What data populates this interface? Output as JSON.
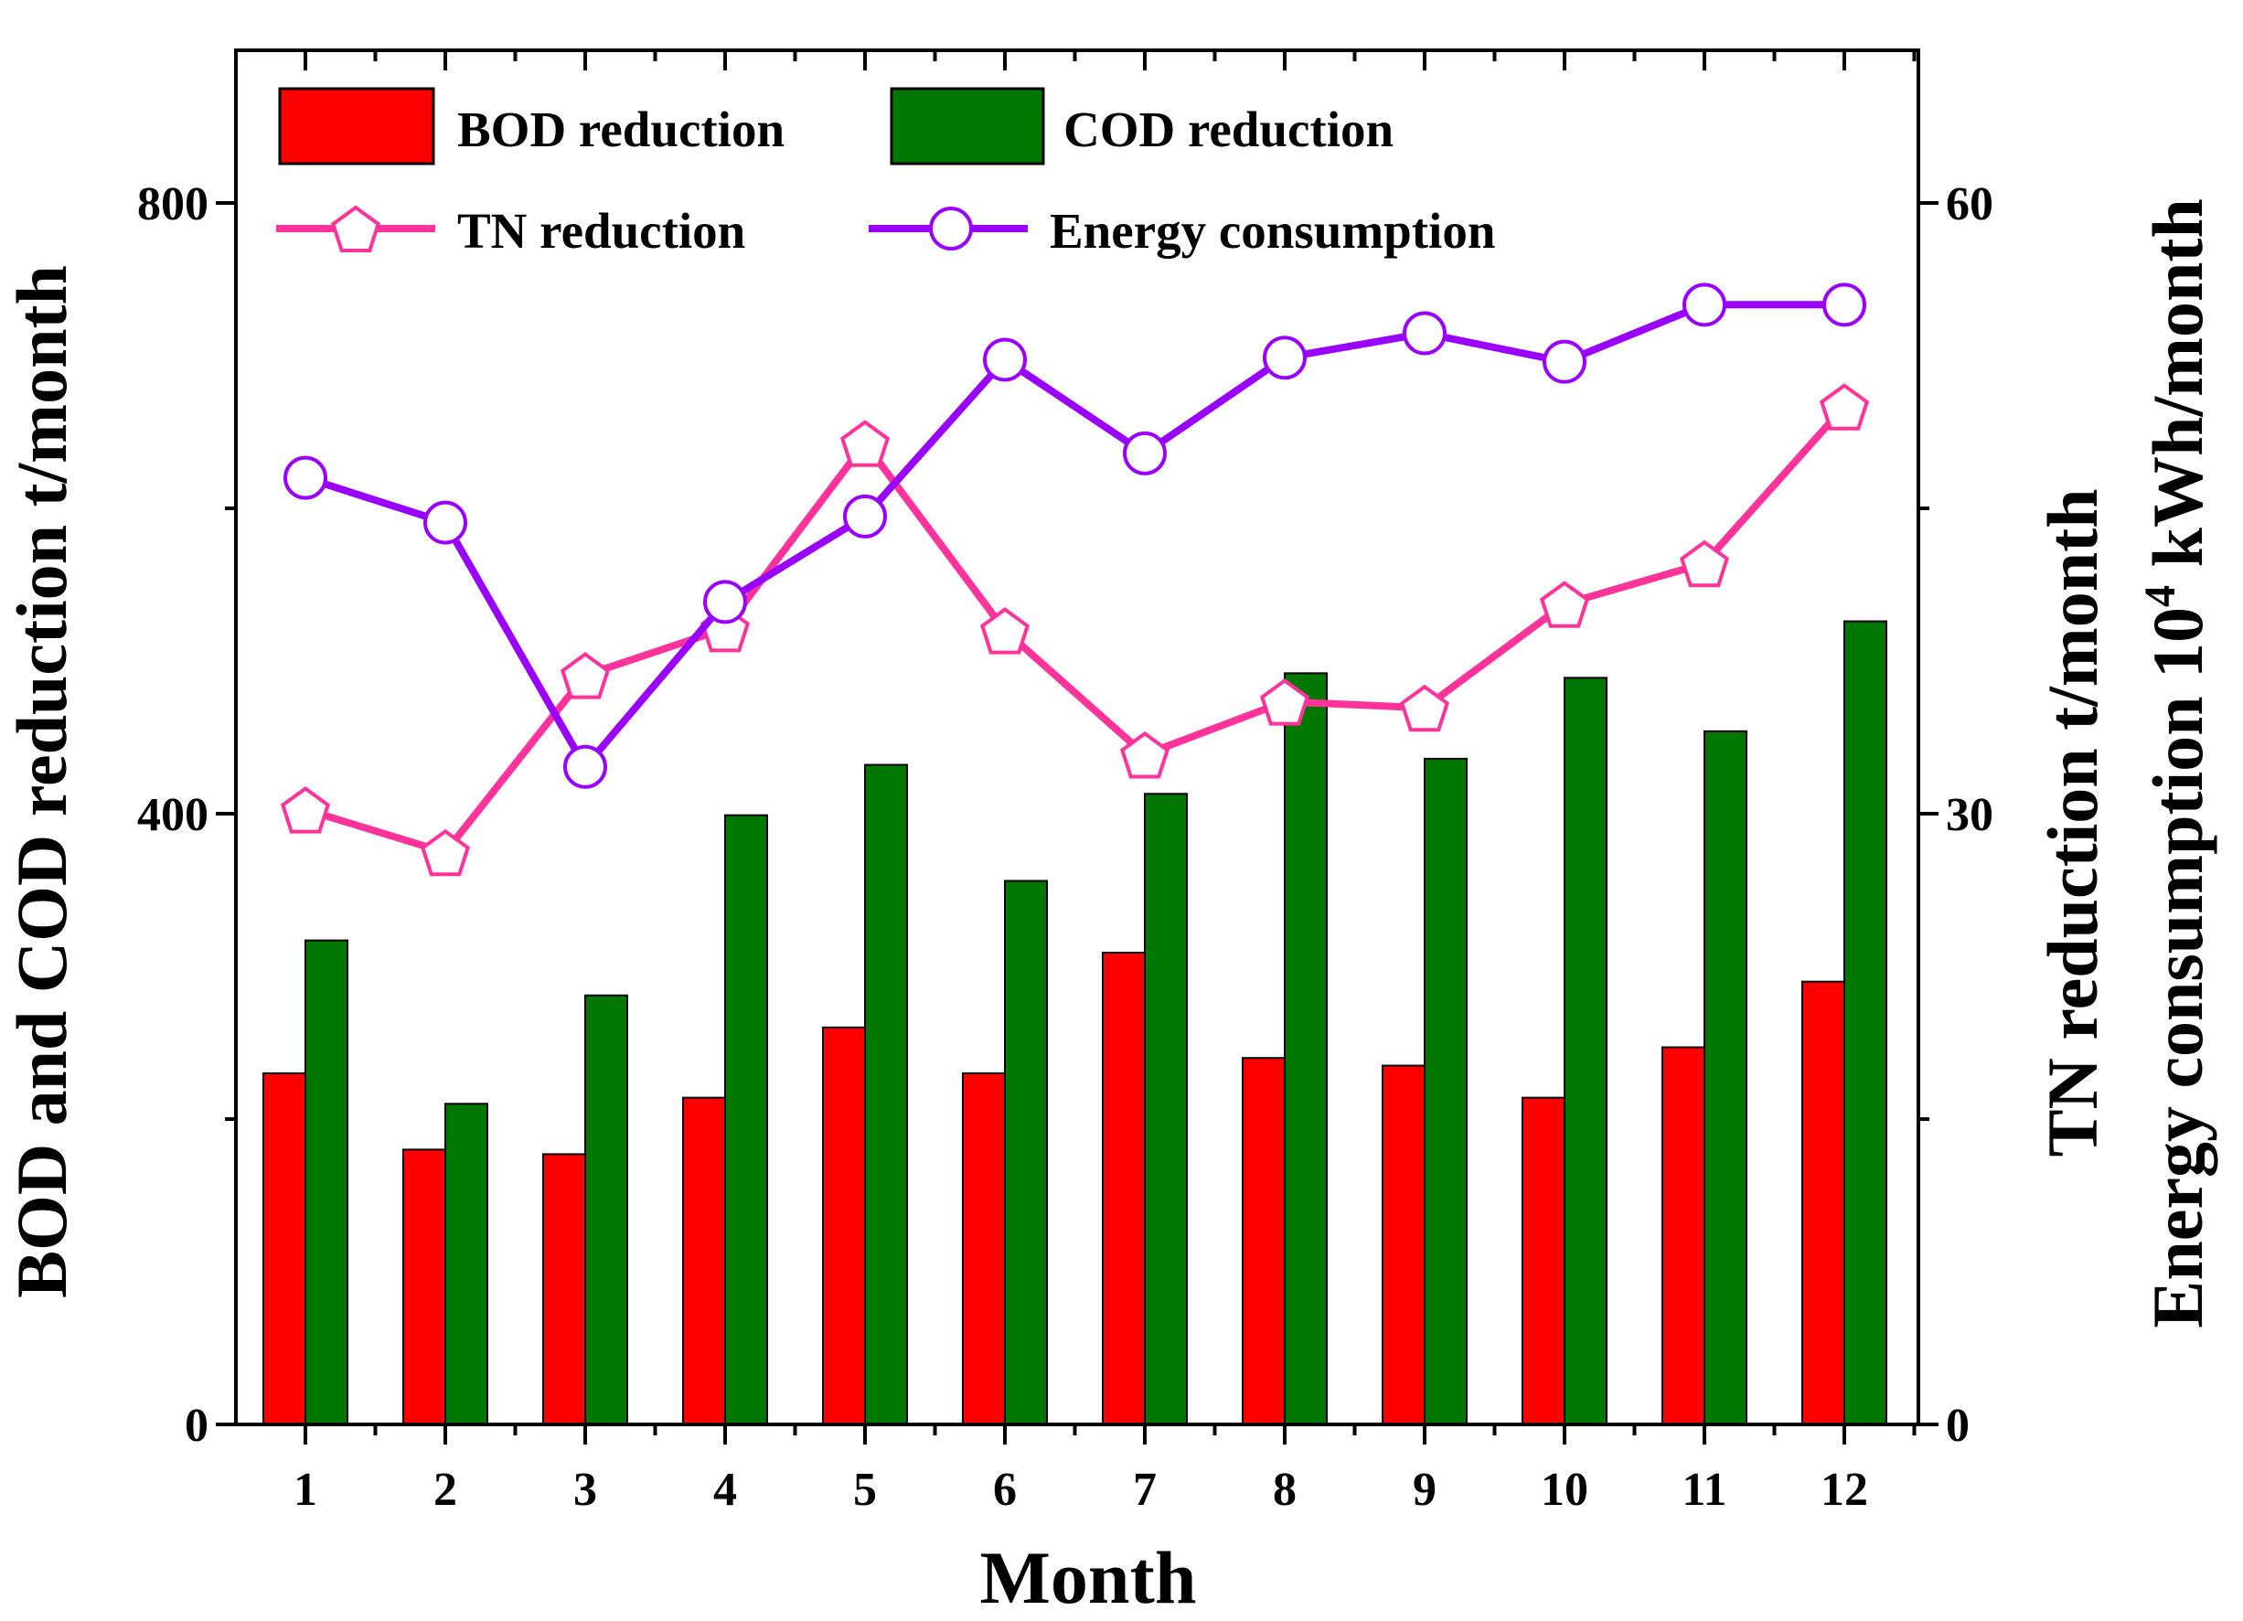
{
  "chart_data": {
    "type": "bar",
    "categories": [
      "1",
      "2",
      "3",
      "4",
      "5",
      "6",
      "7",
      "8",
      "9",
      "10",
      "11",
      "12"
    ],
    "xlabel": "Month",
    "ylabel_left": "BOD and COD reduction t/month",
    "ylabel_right_1": "TN reduction t/month",
    "ylabel_right_2_prefix": "Energy consumption  10",
    "ylabel_right_2_sup": "4",
    "ylabel_right_2_suffix": " kWh/month",
    "ylim_left": [
      0,
      900
    ],
    "ylim_right": [
      0,
      67.5
    ],
    "yticks_left": [
      "0",
      "400",
      "800"
    ],
    "yticks_right": [
      "0",
      "30",
      "60"
    ],
    "legend_position": "top-left",
    "series": [
      {
        "name": "BOD reduction",
        "type": "bar",
        "axis": "left",
        "color": "#ff0000",
        "values": [
          230,
          180,
          177,
          214,
          260,
          230,
          309,
          240,
          235,
          214,
          247,
          290
        ]
      },
      {
        "name": "COD reduction",
        "type": "bar",
        "axis": "left",
        "color": "#007700",
        "values": [
          317,
          210,
          281,
          399,
          432,
          356,
          413,
          492,
          436,
          489,
          454,
          526
        ]
      },
      {
        "name": "TN reduction",
        "type": "line",
        "axis": "right",
        "color": "#ff3399",
        "marker": "pentagon",
        "values": [
          30.2,
          28.1,
          36.8,
          39.1,
          48.2,
          39.0,
          32.9,
          35.5,
          35.2,
          40.3,
          42.3,
          50.0
        ]
      },
      {
        "name": "Energy consumption",
        "type": "line",
        "axis": "right",
        "color": "#9900ff",
        "marker": "circle",
        "values": [
          46.5,
          44.3,
          32.3,
          40.4,
          44.6,
          52.3,
          47.7,
          52.4,
          53.6,
          52.2,
          55.0,
          55.0
        ]
      }
    ]
  }
}
